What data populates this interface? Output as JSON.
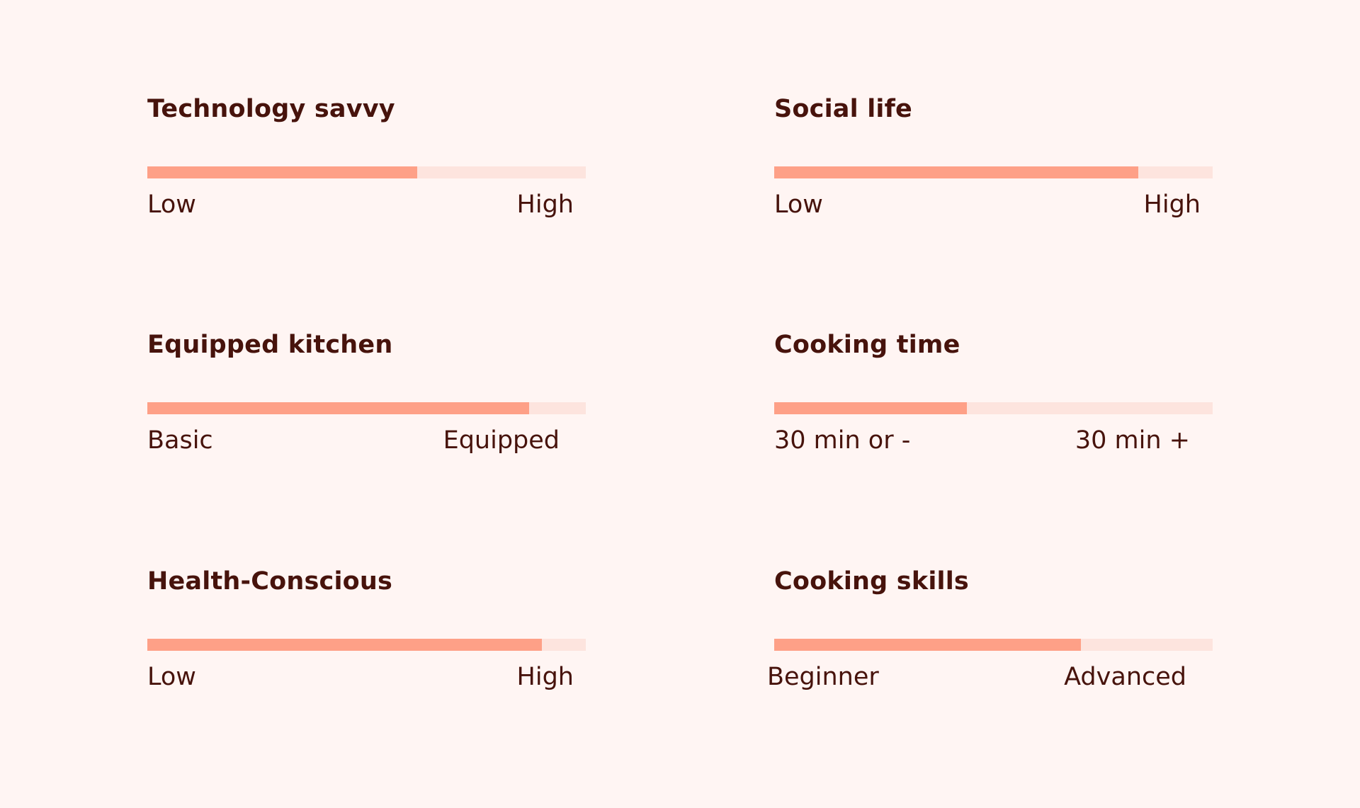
{
  "traits": [
    {
      "title": "Technology savvy",
      "low_label": "Low",
      "high_label": "High",
      "level_percent": 61.5,
      "fill_color": "#fea087",
      "track_color": "#fde4de"
    },
    {
      "title": "Social life",
      "low_label": "Low",
      "high_label": "High",
      "level_percent": 83,
      "fill_color": "#fea087",
      "track_color": "#fde4de"
    },
    {
      "title": "Equipped kitchen",
      "low_label": "Basic",
      "high_label": "Equipped",
      "level_percent": 87,
      "fill_color": "#fea087",
      "track_color": "#fde4de"
    },
    {
      "title": "Cooking time",
      "low_label": "30 min or -",
      "high_label": "30 min +",
      "level_percent": 44,
      "fill_color": "#fea087",
      "track_color": "#fde4de"
    },
    {
      "title": "Health-Conscious",
      "low_label": "Low",
      "high_label": "High",
      "level_percent": 90,
      "fill_color": "#fea087",
      "track_color": "#fde4de"
    },
    {
      "title": "Cooking skills",
      "low_label": "Beginner",
      "high_label": "Advanced",
      "level_percent": 70,
      "fill_color": "#fea087",
      "track_color": "#fde4de"
    }
  ],
  "colors": {
    "background": "#fff5f3",
    "text": "#47130c"
  }
}
